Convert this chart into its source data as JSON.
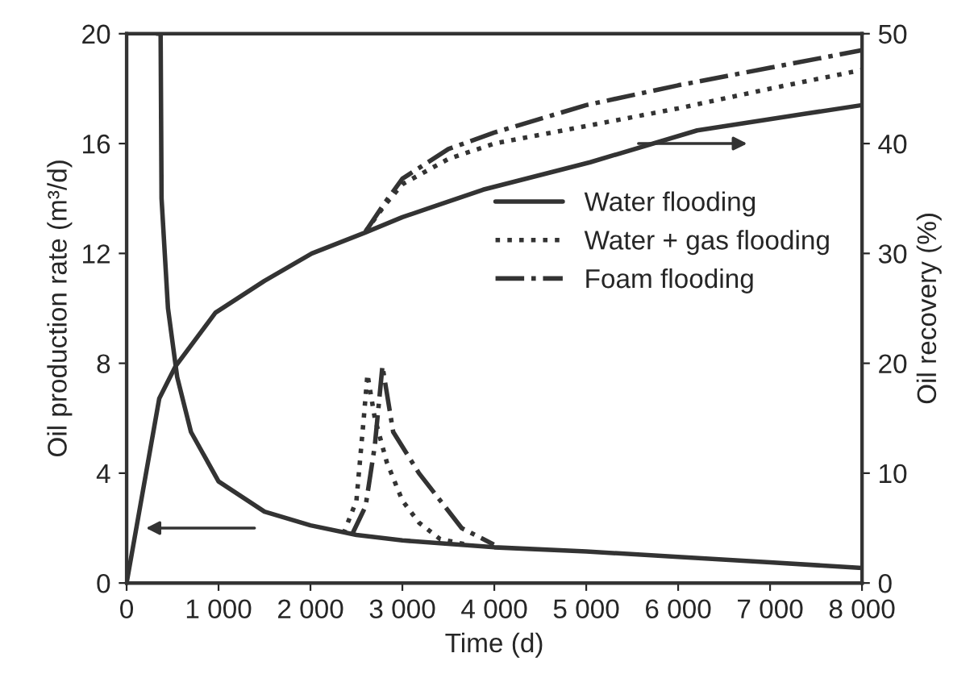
{
  "chart_data": {
    "type": "line",
    "xlabel": "Time (d)",
    "ylabel": "Oil production rate (m³/d)",
    "y2label": "Oil recovery (%)",
    "xlim": [
      0,
      8000
    ],
    "xticks": [
      0,
      {
        "value": 1000,
        "label": "1 000"
      },
      {
        "value": 2000,
        "label": "2 000"
      },
      {
        "value": 3000,
        "label": "3 000"
      },
      {
        "value": 4000,
        "label": "4 000"
      },
      {
        "value": 5000,
        "label": "5 000"
      },
      {
        "value": 6000,
        "label": "6 000"
      },
      {
        "value": 7000,
        "label": "7 000"
      },
      {
        "value": 8000,
        "label": "8 000"
      }
    ],
    "ylim": [
      0,
      20
    ],
    "yticks": [
      0,
      4,
      8,
      12,
      16,
      20
    ],
    "y2lim": [
      0,
      50
    ],
    "y2ticks": [
      0,
      10,
      20,
      30,
      40,
      50
    ],
    "grid": false,
    "legend": "right",
    "marker": "none",
    "series": [
      {
        "name": "Water flooding",
        "color": "#333333",
        "line_style": "solid",
        "x": [
          330,
          370,
          380,
          450,
          550,
          700,
          1000,
          1500,
          2000,
          2500,
          3000,
          4000,
          5000,
          6000,
          7000,
          8000
        ],
        "values": [
          20,
          20,
          14,
          10,
          7.5,
          5.5,
          3.7,
          2.6,
          2.1,
          1.75,
          1.55,
          1.3,
          1.15,
          0.95,
          0.75,
          0.55
        ]
      },
      {
        "name": "Water + gas flooding",
        "color": "#333333",
        "line_style": "dotted",
        "x": [
          2360,
          2500,
          2580,
          2620,
          2700,
          2830,
          3000,
          3180,
          3410,
          3700
        ],
        "values": [
          1.8,
          3.0,
          6.0,
          7.6,
          6.0,
          4.4,
          3.0,
          2.2,
          1.6,
          1.4
        ]
      },
      {
        "name": "Foam flooding",
        "color": "#333333",
        "line_style": "dashdot",
        "x": [
          2450,
          2600,
          2700,
          2783,
          2900,
          3180,
          3645,
          3995
        ],
        "values": [
          1.75,
          2.8,
          5.0,
          7.9,
          5.5,
          4.0,
          2.0,
          1.4
        ]
      },
      {
        "color": "#333333",
        "line_style": "solid",
        "axis": "y2",
        "x": [
          0,
          355,
          530,
          966,
          1500,
          2015,
          2597,
          3000,
          3878,
          5043,
          6207,
          7371,
          8000
        ],
        "values": [
          0,
          16.8,
          19.7,
          24.6,
          27.5,
          30,
          31.9,
          33.3,
          35.8,
          38.3,
          41.2,
          42.7,
          43.5
        ]
      },
      {
        "color": "#333333",
        "line_style": "dotted",
        "axis": "y2",
        "x": [
          2600,
          2800,
          3000,
          3500,
          4000,
          5000,
          6000,
          7000,
          8000
        ],
        "values": [
          32,
          34.3,
          36.3,
          38.6,
          40,
          41.6,
          43.2,
          45,
          46.7
        ]
      },
      {
        "color": "#333333",
        "line_style": "dashdot",
        "axis": "y2",
        "x": [
          2600,
          2800,
          3000,
          3500,
          4000,
          5000,
          6000,
          7000,
          8000
        ],
        "values": [
          32,
          34.5,
          36.8,
          39.5,
          41,
          43.5,
          45.3,
          46.9,
          48.5
        ]
      }
    ]
  }
}
